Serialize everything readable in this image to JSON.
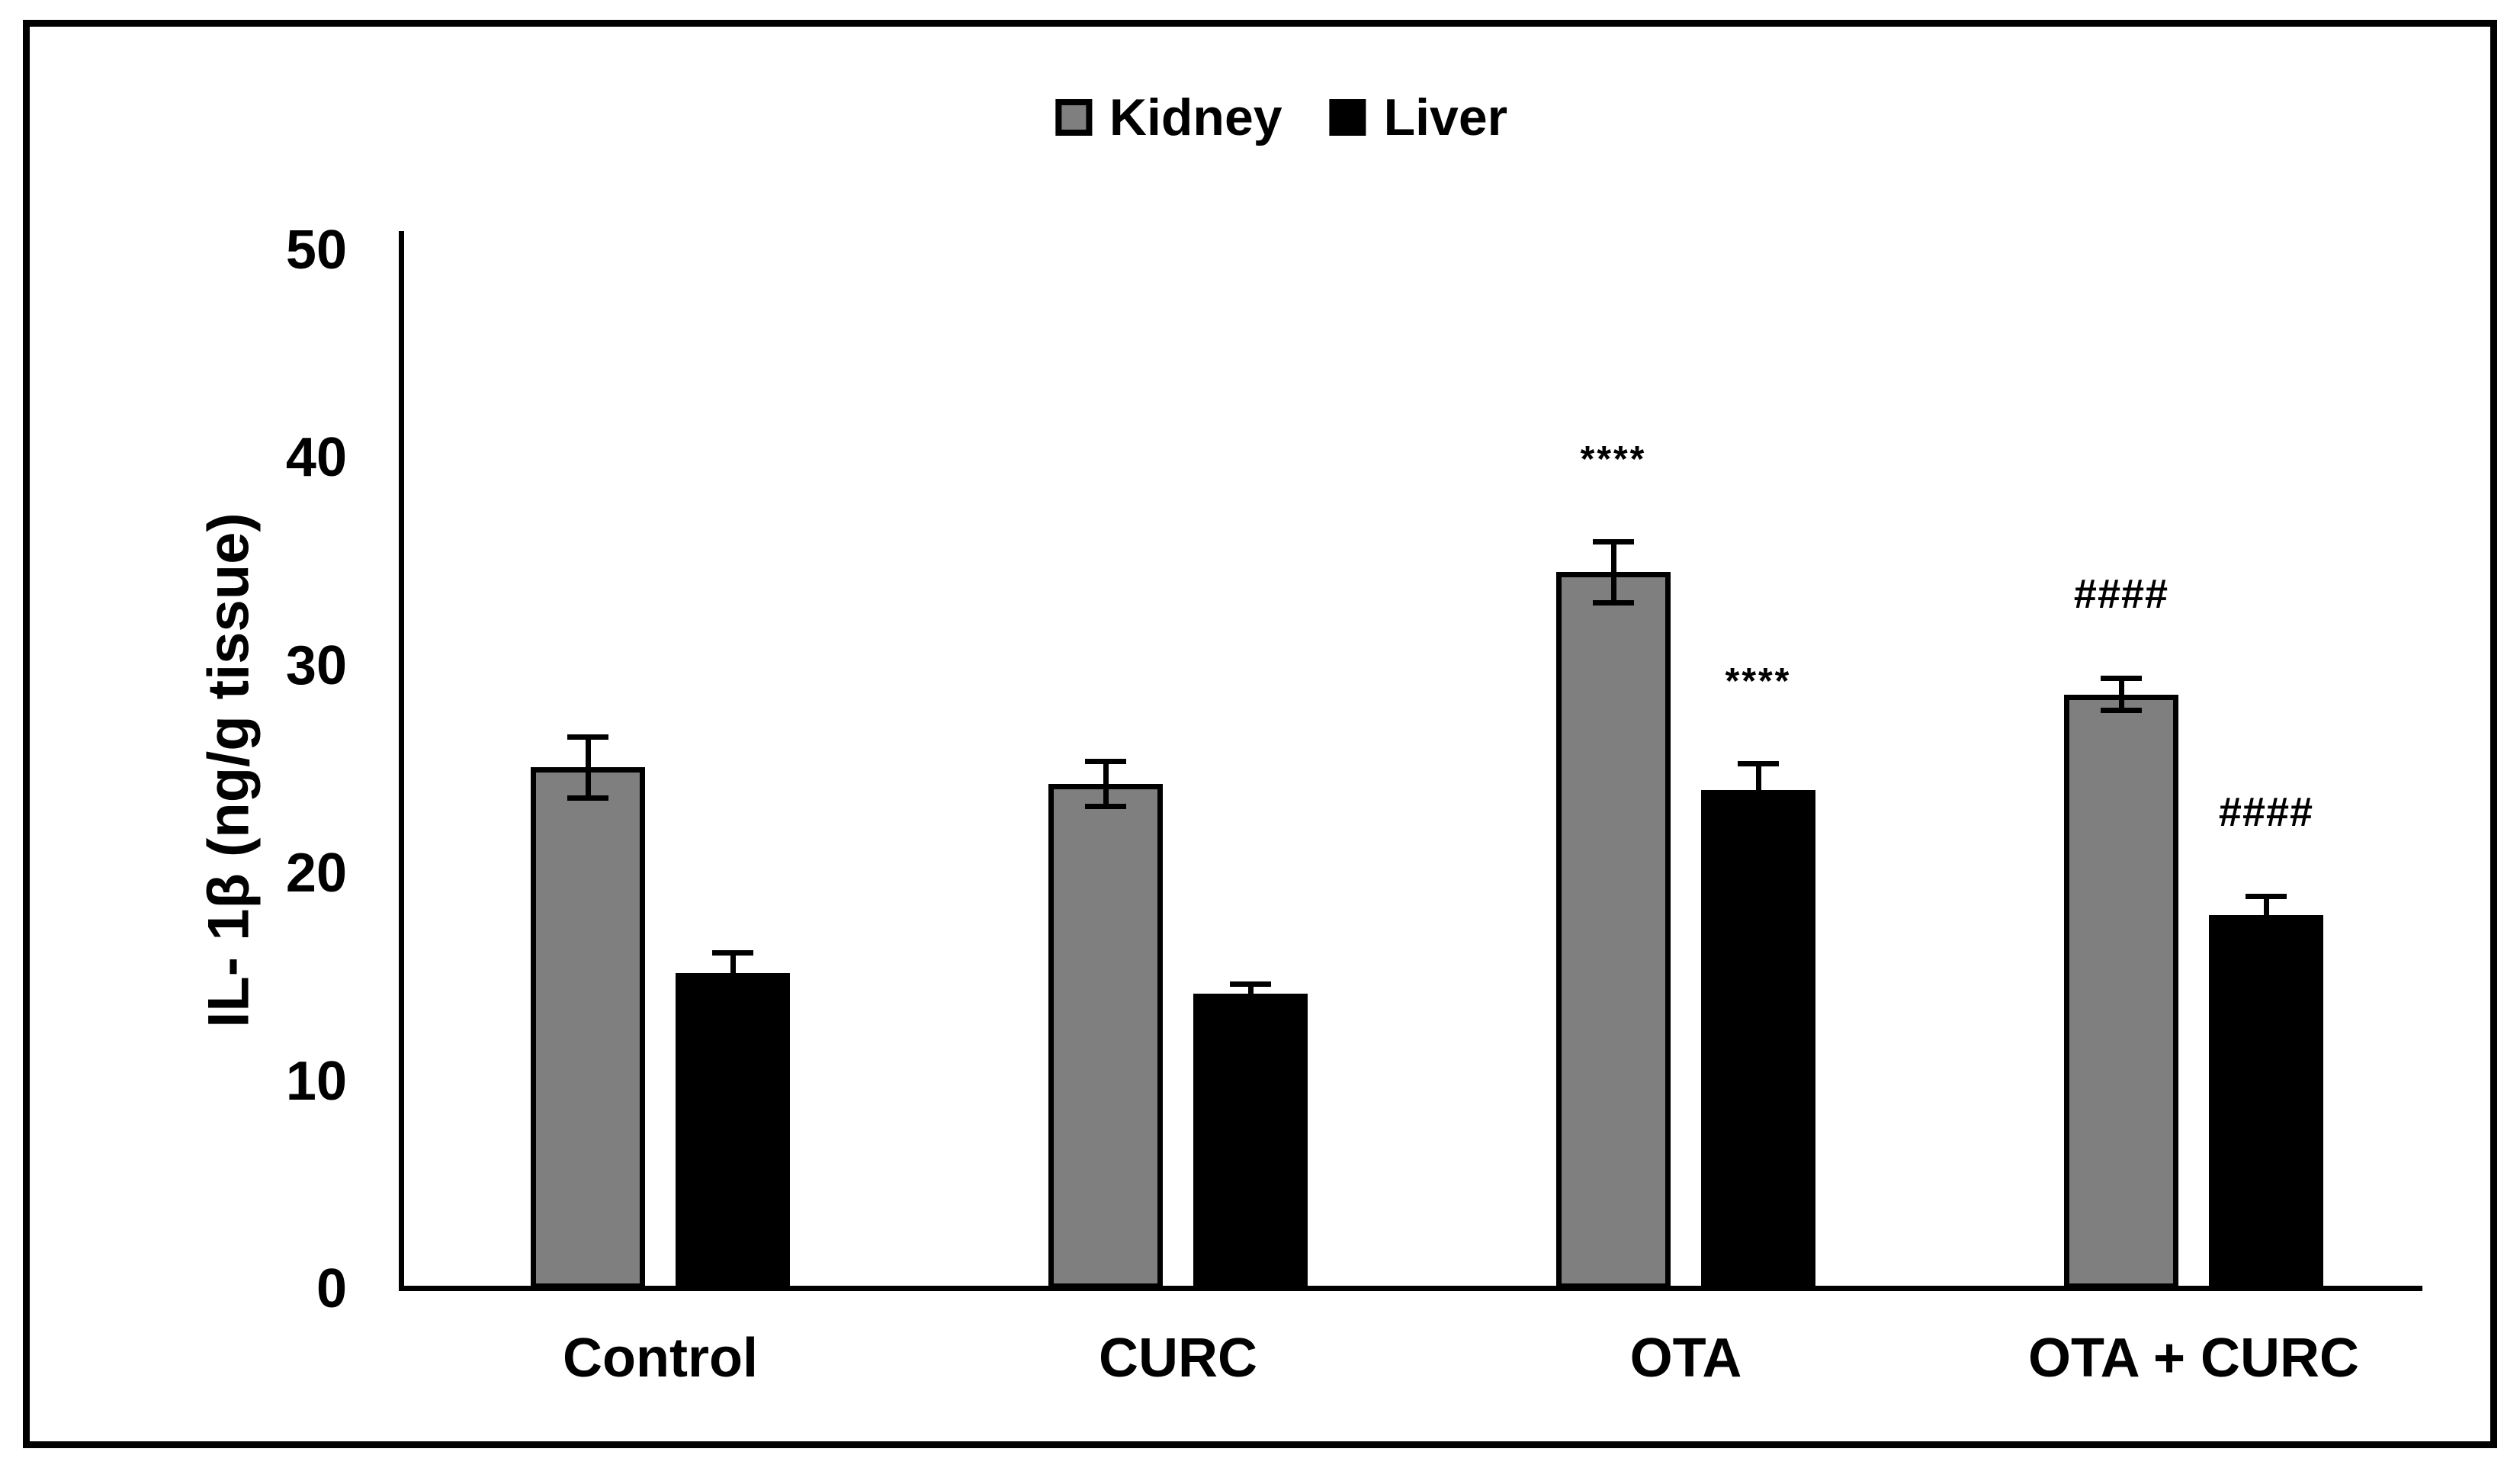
{
  "chart_data": {
    "type": "bar",
    "title": "",
    "categories": [
      "Control",
      "CURC",
      "OTA",
      "OTA + CURC"
    ],
    "series": [
      {
        "name": "Kidney",
        "color": "#7F7F7F",
        "border_color": "#000000",
        "values": [
          25.1,
          24.3,
          34.5,
          28.6
        ],
        "errors": [
          1.6,
          1.2,
          1.6,
          0.9
        ],
        "annotations": [
          "",
          "",
          "****",
          "####"
        ]
      },
      {
        "name": "Liver",
        "color": "#000000",
        "border_color": "#000000",
        "values": [
          15.2,
          14.2,
          24.0,
          18.0
        ],
        "errors": [
          1.1,
          0.6,
          1.4,
          1.0
        ],
        "annotations": [
          "",
          "",
          "****",
          "####"
        ]
      }
    ],
    "ylabel": "IL- 1β (ng/g tissue)",
    "xlabel": "",
    "ylim": [
      0,
      50
    ],
    "yticks": [
      0,
      10,
      20,
      30,
      40,
      50
    ],
    "grid": false,
    "legend_position": "top-center",
    "error_bars": true,
    "annotation_colors": {
      "text": "#000000"
    },
    "frame_color": "#000000",
    "background_color": "#ffffff"
  }
}
